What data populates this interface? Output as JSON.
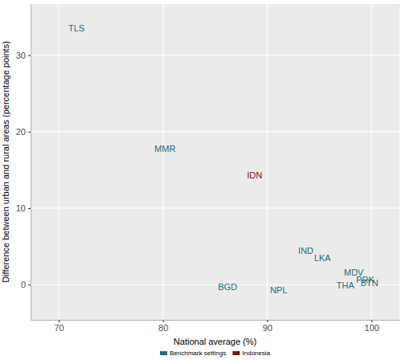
{
  "chart_data": {
    "type": "scatter",
    "x_label": "National average (%)",
    "y_label": "Difference between urban and rural areas (percentage points)",
    "xlim": [
      67.3,
      102.7
    ],
    "xticks": [
      70,
      80,
      90,
      100
    ],
    "ylim": [
      -4.6,
      36.7
    ],
    "yticks": [
      0,
      10,
      20,
      30
    ],
    "grid": true,
    "legend": "bottom",
    "marker": "text",
    "series": [
      {
        "name": "Benchmark settings",
        "color": "#1f6b78",
        "labels": [
          "TLS",
          "MMR",
          "IND",
          "LKA",
          "MDV",
          "PRK",
          "BTN",
          "THA",
          "BGD",
          "NPL"
        ],
        "x": [
          71.7,
          80.2,
          93.7,
          95.3,
          98.3,
          99.4,
          99.8,
          97.5,
          86.2,
          91.1
        ],
        "values": [
          33.4,
          17.7,
          4.3,
          3.4,
          1.5,
          0.5,
          0.1,
          -0.2,
          -0.4,
          -0.8
        ]
      },
      {
        "name": "Indonesia",
        "color": "#6b1a1e",
        "labels": [
          "IDN"
        ],
        "x": [
          88.8
        ],
        "values": [
          14.2
        ]
      }
    ]
  }
}
